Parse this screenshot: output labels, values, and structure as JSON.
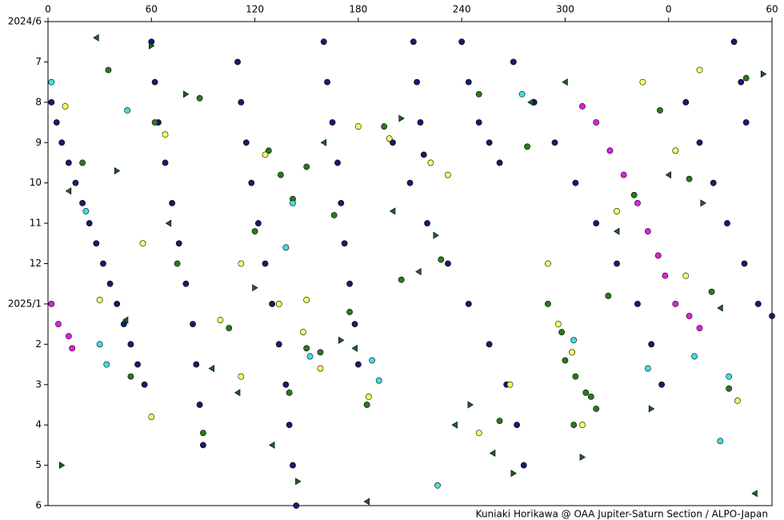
{
  "chart_data": {
    "type": "scatter",
    "caption": "Kuniaki Horikawa @ OAA Jupiter-Saturn Section / ALPO-Japan",
    "xlim": [
      0,
      420
    ],
    "xticks": [
      0,
      60,
      120,
      180,
      240,
      300,
      {
        "value": 360,
        "label": "0"
      },
      {
        "value": 420,
        "label": "60"
      }
    ],
    "ylim": [
      0,
      12
    ],
    "y_reversed": true,
    "yticks": [
      {
        "value": 0,
        "label": "2024/6"
      },
      {
        "value": 1,
        "label": "7"
      },
      {
        "value": 2,
        "label": "8"
      },
      {
        "value": 3,
        "label": "9"
      },
      {
        "value": 4,
        "label": "10"
      },
      {
        "value": 5,
        "label": "11"
      },
      {
        "value": 6,
        "label": "12"
      },
      {
        "value": 7,
        "label": "2025/1"
      },
      {
        "value": 8,
        "label": "2"
      },
      {
        "value": 9,
        "label": "3"
      },
      {
        "value": 10,
        "label": "4"
      },
      {
        "value": 11,
        "label": "5"
      },
      {
        "value": 12,
        "label": "6"
      }
    ],
    "series": [
      {
        "color": "#1a1a6e",
        "marker": "circle",
        "x": [
          2,
          5,
          8,
          12,
          16,
          20,
          24,
          28,
          32,
          36,
          40,
          44,
          48,
          52,
          56
        ],
        "values": [
          2,
          2.5,
          3,
          3.5,
          4,
          4.5,
          5,
          5.5,
          6,
          6.5,
          7,
          7.5,
          8,
          8.5,
          9
        ]
      },
      {
        "color": "#1a1a6e",
        "marker": "circle",
        "x": [
          60,
          62,
          64,
          68,
          72,
          76,
          80,
          84,
          86,
          88,
          90
        ],
        "values": [
          0.5,
          1.5,
          2.5,
          3.5,
          4.5,
          5.5,
          6.5,
          7.5,
          8.5,
          9.5,
          10.5
        ]
      },
      {
        "color": "#1a1a6e",
        "marker": "circle",
        "x": [
          110,
          112,
          115,
          118,
          122,
          126,
          130,
          134,
          138,
          140,
          142,
          144
        ],
        "values": [
          1,
          2,
          3,
          4,
          5,
          6,
          7,
          8,
          9,
          10,
          11,
          12
        ]
      },
      {
        "color": "#1a1a6e",
        "marker": "circle",
        "x": [
          160,
          162,
          165,
          168,
          170,
          172,
          175,
          178,
          180
        ],
        "values": [
          0.5,
          1.5,
          2.5,
          3.5,
          4.5,
          5.5,
          6.5,
          7.5,
          8.5
        ]
      },
      {
        "color": "#1a1a6e",
        "marker": "circle",
        "x": [
          200,
          210,
          220,
          232,
          244,
          256,
          266,
          272,
          276
        ],
        "values": [
          3,
          4,
          5,
          6,
          7,
          8,
          9,
          10,
          11
        ]
      },
      {
        "color": "#1a1a6e",
        "marker": "circle",
        "x": [
          240,
          244,
          250,
          256,
          262
        ],
        "values": [
          0.5,
          1.5,
          2.5,
          3,
          3.5
        ]
      },
      {
        "color": "#1a1a6e",
        "marker": "circle",
        "x": [
          270,
          282,
          294,
          306,
          318,
          330,
          342,
          350,
          356
        ],
        "values": [
          1,
          2,
          3,
          4,
          5,
          6,
          7,
          8,
          9
        ]
      },
      {
        "color": "#1a1a6e",
        "marker": "circle",
        "x": [
          370,
          378,
          386,
          394,
          404,
          412,
          420
        ],
        "values": [
          2,
          3,
          4,
          5,
          6,
          7,
          7.3
        ]
      },
      {
        "color": "#1a1a6e",
        "marker": "circle",
        "x": [
          398,
          402,
          405
        ],
        "values": [
          0.5,
          1.5,
          2.5
        ]
      },
      {
        "color": "#1a1a6e",
        "marker": "circle",
        "x": [
          212,
          214,
          216,
          218
        ],
        "values": [
          0.5,
          1.5,
          2.5,
          3.3
        ]
      },
      {
        "color": "#e020e0",
        "marker": "circle",
        "x": [
          310,
          318,
          326,
          334,
          342,
          348,
          354,
          358,
          364,
          372,
          378,
          2,
          6,
          12,
          14
        ],
        "values": [
          2.1,
          2.5,
          3.2,
          3.8,
          4.5,
          5.2,
          5.8,
          6.3,
          7,
          7.3,
          7.6,
          7,
          7.5,
          7.8,
          8.1
        ]
      },
      {
        "color": "#2a7a1c",
        "marker": "circle",
        "x": [
          20,
          35,
          48,
          62,
          75,
          90,
          105,
          120,
          128,
          135,
          142,
          150,
          158,
          166,
          175,
          185,
          195,
          205,
          228,
          250,
          262,
          278,
          290,
          300,
          306,
          312,
          318,
          325,
          340,
          355,
          372,
          385,
          395,
          405,
          140,
          150,
          298,
          305,
          315,
          88
        ],
        "values": [
          3.5,
          1.2,
          8.8,
          2.5,
          6.0,
          10.2,
          7.6,
          5.2,
          3.2,
          3.8,
          4.4,
          3.6,
          8.2,
          4.8,
          7.2,
          9.5,
          2.6,
          6.4,
          5.9,
          1.8,
          9.9,
          3.1,
          7.0,
          8.4,
          8.8,
          9.2,
          9.6,
          6.8,
          4.3,
          2.2,
          3.9,
          6.7,
          9.1,
          1.4,
          9.2,
          8.1,
          7.7,
          10.0,
          9.3,
          1.9
        ]
      },
      {
        "color": "#ffff66",
        "marker": "circle",
        "x": [
          10,
          30,
          55,
          68,
          100,
          112,
          126,
          134,
          148,
          158,
          180,
          186,
          198,
          222,
          232,
          250,
          268,
          290,
          296,
          304,
          310,
          330,
          345,
          364,
          378,
          400,
          60,
          150,
          112,
          370
        ],
        "values": [
          2.1,
          6.9,
          5.5,
          2.8,
          7.4,
          6.0,
          3.3,
          7.0,
          7.7,
          8.6,
          2.6,
          9.3,
          2.9,
          3.5,
          3.8,
          10.2,
          9.0,
          6.0,
          7.5,
          8.2,
          10.0,
          4.7,
          1.5,
          3.2,
          1.2,
          9.4,
          9.8,
          6.9,
          8.8,
          6.3
        ]
      },
      {
        "color": "#40e0e0",
        "marker": "circle",
        "x": [
          2,
          22,
          30,
          34,
          46,
          138,
          142,
          152,
          188,
          192,
          275,
          305,
          348,
          375,
          395,
          390,
          226
        ],
        "values": [
          1.5,
          4.7,
          8.0,
          8.5,
          2.2,
          5.6,
          4.5,
          8.3,
          8.4,
          8.9,
          1.8,
          7.9,
          8.6,
          8.3,
          8.8,
          10.4,
          11.5
        ]
      },
      {
        "color": "#1f5f1f",
        "marker": "triangle-left",
        "x": [
          12,
          28,
          45,
          70,
          95,
          110,
          130,
          160,
          178,
          200,
          215,
          236,
          258,
          280,
          300,
          330,
          360,
          390,
          410,
          185
        ],
        "values": [
          4.2,
          0.4,
          7.4,
          5.0,
          8.6,
          9.2,
          10.5,
          3.0,
          8.1,
          4.7,
          6.2,
          10.0,
          10.7,
          2.0,
          1.5,
          5.2,
          3.8,
          7.1,
          11.7,
          11.9
        ]
      },
      {
        "color": "#1f5f1f",
        "marker": "triangle-right",
        "x": [
          8,
          40,
          80,
          120,
          170,
          205,
          245,
          270,
          310,
          350,
          380,
          415,
          145,
          60,
          225
        ],
        "values": [
          11.0,
          3.7,
          1.8,
          6.6,
          7.9,
          2.4,
          9.5,
          11.2,
          10.8,
          9.6,
          4.5,
          1.3,
          11.4,
          0.6,
          5.3
        ]
      }
    ]
  }
}
